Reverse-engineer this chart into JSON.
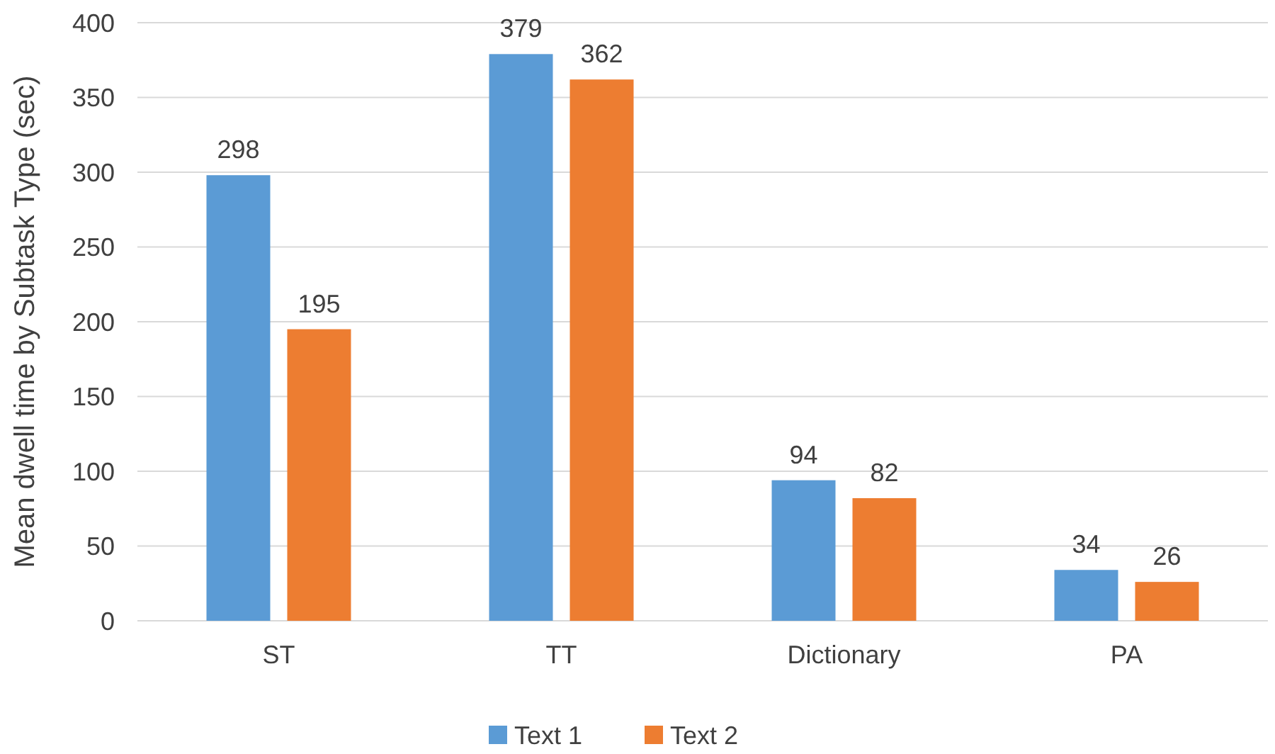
{
  "chart_data": {
    "type": "bar",
    "ylabel": "Mean dwell time by Subtask Type (sec)",
    "categories": [
      "ST",
      "TT",
      "Dictionary",
      "PA"
    ],
    "series": [
      {
        "name": "Text 1",
        "color": "#5b9bd5",
        "values": [
          298,
          379,
          94,
          34
        ]
      },
      {
        "name": "Text 2",
        "color": "#ed7d31",
        "values": [
          195,
          362,
          82,
          26
        ]
      }
    ],
    "ylim": [
      0,
      400
    ],
    "yticks": [
      0,
      50,
      100,
      150,
      200,
      250,
      300,
      350,
      400
    ],
    "grid": "y",
    "legend": "bottom",
    "data_labels": true
  }
}
